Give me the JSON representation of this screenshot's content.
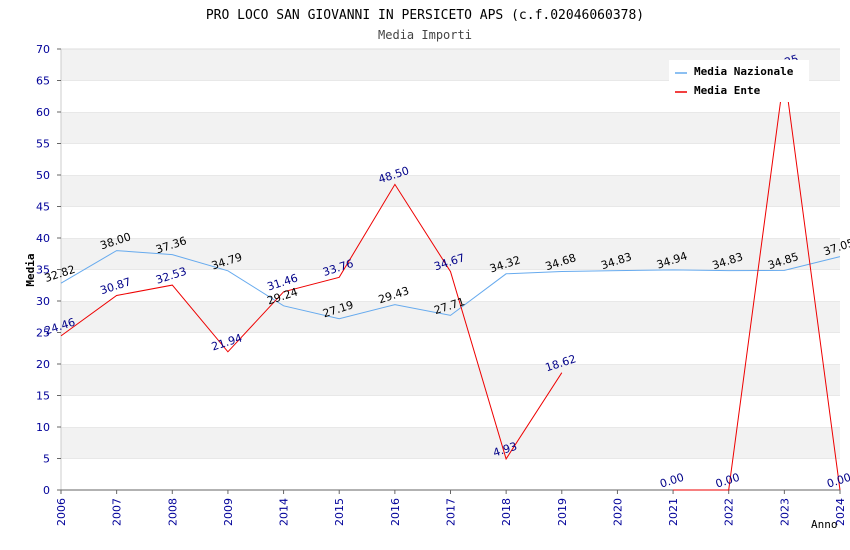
{
  "chart_data": {
    "type": "line",
    "title": "PRO LOCO SAN GIOVANNI IN PERSICETO APS (c.f.02046060378)",
    "subtitle": "Media Importi",
    "xlabel": "Anno",
    "ylabel": "Media",
    "ylim": [
      0,
      70
    ],
    "y_ticks": [
      0,
      5,
      10,
      15,
      20,
      25,
      30,
      35,
      40,
      45,
      50,
      55,
      60,
      65,
      70
    ],
    "categories": [
      "2006",
      "2007",
      "2008",
      "2009",
      "2014",
      "2015",
      "2016",
      "2017",
      "2018",
      "2019",
      "2020",
      "2021",
      "2022",
      "2023",
      "2024"
    ],
    "grid": true,
    "legend_position": "top-right",
    "series": [
      {
        "name": "Media Nazionale",
        "color": "#66aaee",
        "label_color": "#000000",
        "values": [
          32.82,
          38.0,
          37.36,
          34.79,
          29.24,
          27.19,
          29.43,
          27.71,
          34.32,
          34.68,
          34.83,
          34.94,
          34.83,
          34.85,
          37.05
        ],
        "labels": [
          "32.82",
          "38.00",
          "37.36",
          "34.79",
          "29.24",
          "27.19",
          "29.43",
          "27.71",
          "34.32",
          "34.68",
          "34.83",
          "34.94",
          "34.83",
          "34.85",
          "37.05"
        ]
      },
      {
        "name": "Media Ente",
        "color": "#ee0000",
        "label_color": "#000088",
        "values": [
          24.46,
          30.87,
          32.53,
          21.94,
          31.46,
          33.76,
          48.5,
          34.67,
          4.93,
          18.62,
          null,
          0.0,
          0.0,
          66.25,
          0.0
        ],
        "labels": [
          "24.46",
          "30.87",
          "32.53",
          "21.94",
          "31.46",
          "33.76",
          "48.50",
          "34.67",
          "4.93",
          "18.62",
          "",
          "0.00",
          "0.00",
          "66.25",
          "0.00"
        ]
      }
    ]
  }
}
